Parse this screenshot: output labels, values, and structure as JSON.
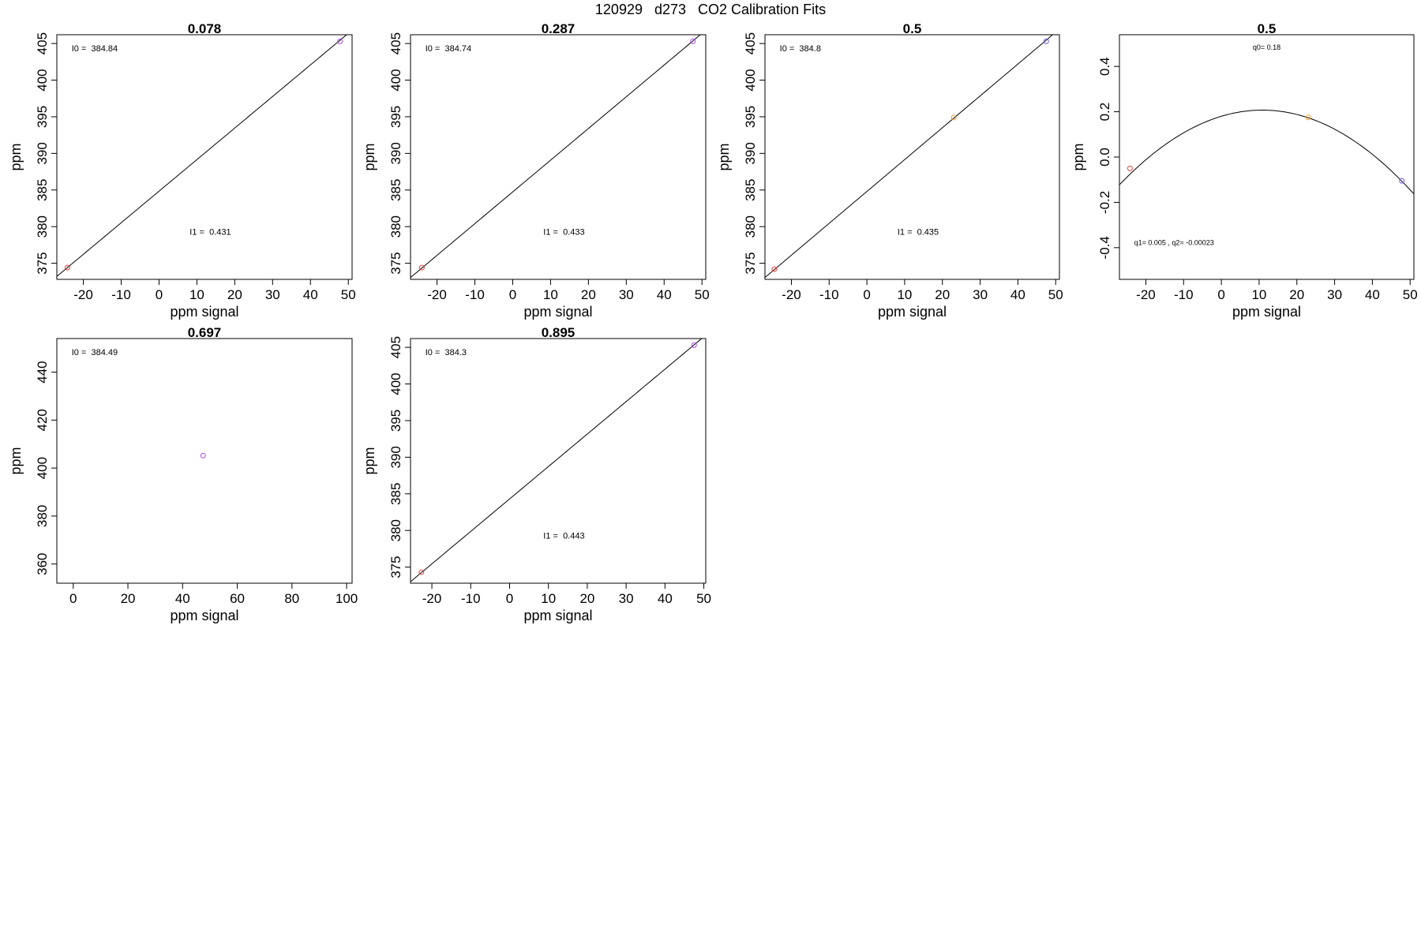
{
  "page": {
    "title": "120929   d273   CO2 Calibration Fits"
  },
  "chart_data": [
    {
      "type": "scatter",
      "title": "0.078",
      "xlabel": "ppm signal",
      "ylabel": "ppm",
      "xlim": [
        -27,
        51
      ],
      "ylim": [
        372.8,
        406.2
      ],
      "xticks": [
        -20,
        -10,
        0,
        10,
        20,
        30,
        40,
        50
      ],
      "yticks": [
        375,
        380,
        385,
        390,
        395,
        400,
        405
      ],
      "points": [
        {
          "x": -24.2,
          "y": 374.4,
          "color": "#e8403a"
        },
        {
          "x": 47.8,
          "y": 405.3,
          "color": "#b044e8"
        }
      ],
      "fit": {
        "kind": "linear",
        "intercept": 384.84,
        "slope": 0.431
      },
      "annotations": [
        "I0 =  384.84",
        "I1 =  0.431"
      ],
      "grid": false
    },
    {
      "type": "scatter",
      "title": "0.287",
      "xlabel": "ppm signal",
      "ylabel": "ppm",
      "xlim": [
        -27,
        51
      ],
      "ylim": [
        372.8,
        406.2
      ],
      "xticks": [
        -20,
        -10,
        0,
        10,
        20,
        30,
        40,
        50
      ],
      "yticks": [
        375,
        380,
        385,
        390,
        395,
        400,
        405
      ],
      "points": [
        {
          "x": -24.0,
          "y": 374.4,
          "color": "#e8403a"
        },
        {
          "x": 47.6,
          "y": 405.3,
          "color": "#b044e8"
        }
      ],
      "fit": {
        "kind": "linear",
        "intercept": 384.74,
        "slope": 0.433
      },
      "annotations": [
        "I0 =  384.74",
        "I1 =  0.433"
      ],
      "grid": false
    },
    {
      "type": "scatter",
      "title": "0.5",
      "xlabel": "ppm signal",
      "ylabel": "ppm",
      "xlim": [
        -27,
        51
      ],
      "ylim": [
        372.8,
        406.2
      ],
      "xticks": [
        -20,
        -10,
        0,
        10,
        20,
        30,
        40,
        50
      ],
      "yticks": [
        375,
        380,
        385,
        390,
        395,
        400,
        405
      ],
      "points": [
        {
          "x": -24.5,
          "y": 374.2,
          "color": "#e8403a"
        },
        {
          "x": 23.0,
          "y": 394.9,
          "color": "#f0a030"
        },
        {
          "x": 47.5,
          "y": 405.3,
          "color": "#7a5ae8"
        }
      ],
      "fit": {
        "kind": "linear",
        "intercept": 384.8,
        "slope": 0.435
      },
      "annotations": [
        "I0 =  384.8",
        "I1 =  0.435"
      ],
      "grid": false
    },
    {
      "type": "scatter",
      "title": "0.5",
      "xlabel": "ppm signal",
      "ylabel": "ppm",
      "xlim": [
        -27,
        51
      ],
      "ylim": [
        -0.54,
        0.54
      ],
      "xticks": [
        -20,
        -10,
        0,
        10,
        20,
        30,
        40,
        50
      ],
      "yticks": [
        -0.4,
        -0.2,
        0.0,
        0.2,
        0.4
      ],
      "ytick_labels": [
        "-0.4",
        "-0.2",
        "0.0",
        "0.2",
        "0.4"
      ],
      "points": [
        {
          "x": -24.2,
          "y": -0.05,
          "color": "#e8403a"
        },
        {
          "x": 23.0,
          "y": 0.175,
          "color": "#f0a030"
        },
        {
          "x": 47.8,
          "y": -0.105,
          "color": "#7a5ae8"
        }
      ],
      "fit": {
        "kind": "quadratic",
        "q0": 0.18,
        "q1": 0.005,
        "q2": -0.00023
      },
      "annotations": [
        "q0= 0.18",
        "q1= 0.005 , q2= -0.00023"
      ],
      "grid": false
    },
    {
      "type": "scatter",
      "title": "0.697",
      "xlabel": "ppm signal",
      "ylabel": "ppm",
      "xlim": [
        -6,
        102
      ],
      "ylim": [
        352,
        454
      ],
      "xticks": [
        0,
        20,
        40,
        60,
        80,
        100
      ],
      "yticks": [
        360,
        380,
        400,
        420,
        440
      ],
      "points": [
        {
          "x": 47.5,
          "y": 405.2,
          "color": "#b044e8"
        }
      ],
      "annotations": [
        "I0 =  384.49"
      ],
      "grid": false
    },
    {
      "type": "scatter",
      "title": "0.895",
      "xlabel": "ppm signal",
      "ylabel": "ppm",
      "xlim": [
        -25.5,
        50.5
      ],
      "ylim": [
        372.8,
        406.2
      ],
      "xticks": [
        -20,
        -10,
        0,
        10,
        20,
        30,
        40,
        50
      ],
      "yticks": [
        375,
        380,
        385,
        390,
        395,
        400,
        405
      ],
      "points": [
        {
          "x": -22.7,
          "y": 374.3,
          "color": "#e8403a"
        },
        {
          "x": 47.5,
          "y": 405.3,
          "color": "#b044e8"
        }
      ],
      "fit": {
        "kind": "linear",
        "intercept": 384.3,
        "slope": 0.443
      },
      "annotations": [
        "I0 =  384.3",
        "I1 =  0.443"
      ],
      "grid": false
    }
  ]
}
